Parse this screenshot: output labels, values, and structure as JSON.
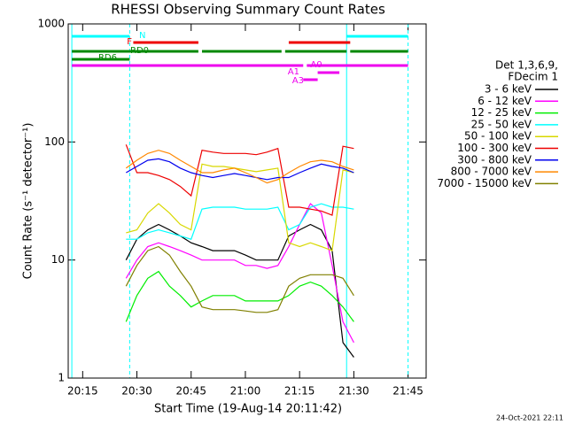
{
  "chart_data": {
    "type": "line",
    "title": "RHESSI Observing Summary Count Rates",
    "x_label": "Start Time (19-Aug-14 20:11:42)",
    "y_label": "Count Rate (s⁻¹ detector⁻¹)",
    "footer": "24-Oct-2021 22:11",
    "log_y": true,
    "xlim": [
      "20:11",
      "21:50"
    ],
    "xticks": [
      "20:15",
      "20:30",
      "20:45",
      "21:00",
      "21:15",
      "21:30",
      "21:45"
    ],
    "ylim": [
      1,
      1000
    ],
    "yticks": [
      1,
      10,
      100,
      1000
    ],
    "legend_title": [
      "Det 1,3,6,9,",
      "FDecim 1"
    ],
    "x": [
      "20:27",
      "20:30",
      "20:33",
      "20:36",
      "20:39",
      "20:42",
      "20:45",
      "20:48",
      "20:51",
      "20:54",
      "20:57",
      "21:00",
      "21:03",
      "21:06",
      "21:09",
      "21:12",
      "21:15",
      "21:18",
      "21:21",
      "21:24",
      "21:27",
      "21:30"
    ],
    "series": [
      {
        "name": "3 - 6 keV",
        "color": "#000000",
        "values": [
          10,
          15,
          18,
          20,
          18,
          16,
          14,
          13,
          12,
          12,
          12,
          11,
          10,
          10,
          10,
          16,
          18,
          20,
          18,
          12,
          2,
          1.5
        ]
      },
      {
        "name": "6 - 12 keV",
        "color": "#ff00ff",
        "values": [
          7,
          10,
          13,
          14,
          13,
          12,
          11,
          10,
          10,
          10,
          10,
          9,
          9,
          8.5,
          9,
          13,
          20,
          30,
          25,
          9,
          3,
          2
        ]
      },
      {
        "name": "12 - 25 keV",
        "color": "#00ee00",
        "values": [
          3,
          5,
          7,
          8,
          6,
          5,
          4,
          4.5,
          5,
          5,
          5,
          4.5,
          4.5,
          4.5,
          4.5,
          5,
          6,
          6.5,
          6,
          5,
          4,
          3
        ]
      },
      {
        "name": "25 - 50 keV",
        "color": "#00ffff",
        "values": [
          15,
          15,
          17,
          18,
          17,
          16,
          15,
          27,
          28,
          28,
          28,
          27,
          27,
          27,
          28,
          18,
          20,
          28,
          30,
          28,
          28,
          27
        ]
      },
      {
        "name": "50 - 100 keV",
        "color": "#d8d800",
        "values": [
          17,
          18,
          25,
          30,
          25,
          20,
          18,
          65,
          62,
          62,
          60,
          58,
          56,
          58,
          60,
          14,
          13,
          14,
          13,
          12,
          58,
          55
        ]
      },
      {
        "name": "100 - 300 keV",
        "color": "#ee0000",
        "values": [
          95,
          55,
          55,
          52,
          48,
          42,
          35,
          85,
          82,
          80,
          80,
          80,
          78,
          82,
          88,
          28,
          28,
          27,
          26,
          24,
          92,
          88
        ]
      },
      {
        "name": "300 - 800 keV",
        "color": "#0000ee",
        "values": [
          55,
          62,
          70,
          72,
          68,
          60,
          55,
          52,
          50,
          52,
          54,
          52,
          50,
          48,
          50,
          50,
          55,
          60,
          65,
          62,
          60,
          55
        ]
      },
      {
        "name": "800 - 7000 keV",
        "color": "#ff8800",
        "values": [
          60,
          70,
          80,
          85,
          80,
          70,
          62,
          55,
          55,
          58,
          60,
          55,
          50,
          45,
          48,
          55,
          62,
          68,
          70,
          68,
          62,
          58
        ]
      },
      {
        "name": "7000 - 15000 keV",
        "color": "#808000",
        "values": [
          6,
          9,
          12,
          13,
          11,
          8,
          6,
          4,
          3.8,
          3.8,
          3.8,
          3.7,
          3.6,
          3.6,
          3.8,
          6,
          7,
          7.5,
          7.5,
          7.5,
          7,
          5
        ]
      }
    ],
    "markers_solid": [
      "20:12",
      "21:28"
    ],
    "markers_dashed": [
      "20:28",
      "21:45"
    ],
    "marker_color": "#00ffff",
    "state_bars": [
      {
        "label": "N",
        "color": "#00ffff",
        "segments": [
          [
            "20:12",
            "20:28"
          ],
          [
            "21:28",
            "21:45"
          ]
        ]
      },
      {
        "label": "F",
        "color": "#ee0000",
        "segments": [
          [
            "20:29",
            "20:47"
          ],
          [
            "21:12",
            "21:29"
          ]
        ]
      },
      {
        "label": "RD0",
        "color": "#008800",
        "segments": [
          [
            "20:12",
            "20:47"
          ],
          [
            "20:48",
            "21:10"
          ],
          [
            "21:11",
            "21:28"
          ],
          [
            "21:29",
            "21:45"
          ]
        ]
      },
      {
        "label": "RD6",
        "color": "#008800",
        "segments": [
          [
            "20:12",
            "20:28"
          ]
        ]
      },
      {
        "label": "A0",
        "color": "#ee00ee",
        "segments": [
          [
            "20:12",
            "21:16"
          ],
          [
            "21:17",
            "21:45"
          ]
        ]
      },
      {
        "label": "A1",
        "color": "#ee00ee",
        "segments": [
          [
            "21:20",
            "21:26"
          ]
        ]
      },
      {
        "label": "A3",
        "color": "#ee00ee",
        "segments": [
          [
            "21:16",
            "21:20"
          ]
        ]
      }
    ]
  }
}
